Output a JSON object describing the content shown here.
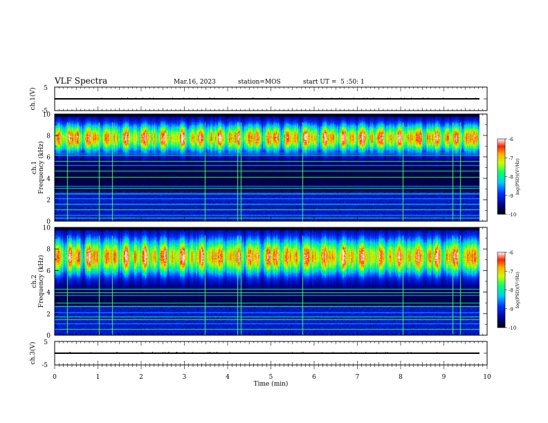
{
  "header": {
    "title": "VLF Spectra",
    "date": "Mar.16, 2023",
    "station": "station=MOS",
    "start": "start UT =  5 :50: 1"
  },
  "chart_data": [
    {
      "type": "line",
      "name": "ch.1 waveform",
      "ylabel": "ch.1(V)",
      "ylim": [
        -5,
        5
      ],
      "yticks": [
        "5",
        "-5"
      ],
      "x": [
        0,
        10
      ],
      "y": [
        0,
        0
      ]
    },
    {
      "type": "heatmap",
      "name": "ch.1 spectrogram",
      "ylabel": "ch.1\nFrequency (kHz)",
      "ylim": [
        0,
        10
      ],
      "yticks": [
        "0",
        "2",
        "4",
        "6",
        "8",
        "10"
      ],
      "xlim": [
        0,
        10
      ],
      "band_center_khz": 7.8,
      "band_halfwidth_khz": 1.7,
      "tones_khz": [
        0.3,
        0.6,
        1.1,
        1.6,
        2.1,
        2.6,
        3.1,
        3.3,
        4.1,
        4.7,
        5.2,
        5.6,
        6.2,
        6.4
      ],
      "spikes_min": [
        0.28,
        1.03,
        1.32,
        3.47,
        4.22,
        4.3,
        5.73,
        8.05,
        9.2,
        9.37
      ],
      "colorbar": {
        "label": "log(PSD)(V²/Hz)",
        "ticks": [
          "-6",
          "-7",
          "-8",
          "-9",
          "-10"
        ],
        "range": [
          -10,
          -6
        ]
      }
    },
    {
      "type": "heatmap",
      "name": "ch.2 spectrogram",
      "ylabel": "ch.2\nFrequency (kHz)",
      "ylim": [
        0,
        10
      ],
      "yticks": [
        "0",
        "2",
        "4",
        "6",
        "8",
        "10"
      ],
      "xlim": [
        0,
        10
      ],
      "band_center_khz": 7.3,
      "band_halfwidth_khz": 2.2,
      "tones_khz": [
        0.6,
        1.1,
        1.5,
        1.7,
        2.1,
        2.7,
        3.0,
        3.7,
        4.0,
        4.3
      ],
      "spikes_min": [
        0.28,
        1.03,
        1.32,
        3.47,
        4.22,
        4.3,
        5.73,
        8.05,
        9.2,
        9.37
      ],
      "colorbar": {
        "label": "log(PSD)(V²/Hz)",
        "ticks": [
          "-6",
          "-7",
          "-8",
          "-9",
          "-10"
        ],
        "range": [
          -10,
          -6
        ]
      }
    },
    {
      "type": "line",
      "name": "ch.3 waveform",
      "ylabel": "ch.3(V)",
      "ylim": [
        -5,
        5
      ],
      "yticks": [
        "5",
        "-5"
      ],
      "x": [
        0,
        10
      ],
      "y": [
        0,
        0
      ]
    }
  ],
  "xaxis": {
    "label": "Time (min)",
    "ticks": [
      "0",
      "1",
      "2",
      "3",
      "4",
      "5",
      "6",
      "7",
      "8",
      "9",
      "10"
    ]
  }
}
